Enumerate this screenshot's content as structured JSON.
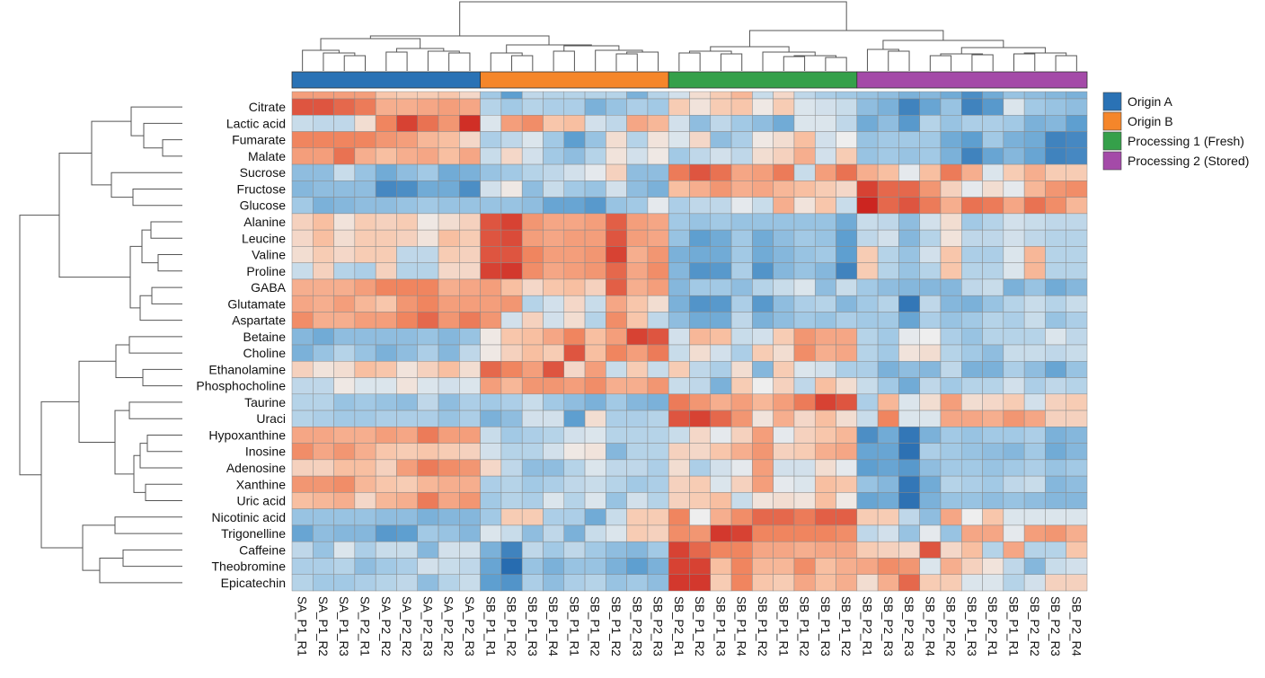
{
  "chart_data": {
    "type": "heatmap",
    "title": "",
    "color_scale": {
      "low": "#2166ac",
      "mid": "#eeeeee",
      "high": "#cc2520",
      "range": [
        -2.5,
        2.5
      ]
    },
    "row_dendrogram": true,
    "column_dendrogram": true,
    "legend_position": "right",
    "legend": [
      {
        "label": "Origin A",
        "color": "#2a72b5"
      },
      {
        "label": "Origin B",
        "color": "#f5862a"
      },
      {
        "label": "Processing 1 (Fresh)",
        "color": "#35a04a"
      },
      {
        "label": "Processing 2 (Stored)",
        "color": "#a44aa8"
      }
    ],
    "column_groups": [
      0,
      0,
      0,
      0,
      0,
      0,
      0,
      0,
      0,
      1,
      1,
      1,
      1,
      1,
      1,
      1,
      1,
      1,
      2,
      2,
      2,
      2,
      2,
      2,
      2,
      2,
      2,
      3,
      3,
      3,
      3,
      3,
      3,
      3,
      3,
      3,
      3,
      3
    ],
    "columns": [
      "SA_P1_R1",
      "SA_P1_R2",
      "SA_P1_R3",
      "SA_P2_R1",
      "SA_P2_R2",
      "SA_P2_R2",
      "SA_P2_R3",
      "SA_P2_R2",
      "SA_P2_R3",
      "SB_P1_R1",
      "SB_P1_R2",
      "SB_P1_R3",
      "SB_P1_R4",
      "SB_P1_R1",
      "SB_P1_R2",
      "SB_P1_R2",
      "SB_P2_R3",
      "SB_P2_R3",
      "SB_P2_R1",
      "SB_P1_R2",
      "SB_P1_R3",
      "SB_P1_R4",
      "SB_P1_R2",
      "SB_P1_R1",
      "SB_P1_R2",
      "SB_P1_R3",
      "SB_P1_R2",
      "SB_P2_R1",
      "SB_P2_R3",
      "SB_P2_R3",
      "SB_P2_R4",
      "SB_P2_R2",
      "SB_P1_R3",
      "SB_P2_R1",
      "SB_P1_R1",
      "SB_P2_R2",
      "SB_P2_R3",
      "SB_P2_R4"
    ],
    "rows": [
      "",
      "Citrate",
      "Lactic acid",
      "Fumarate",
      "Malate",
      "Sucrose",
      "Fructose",
      "Glucose",
      "Alanine",
      "Leucine",
      "Valine",
      "Proline",
      "GABA",
      "Glutamate",
      "Aspartate",
      "Betaine",
      "Choline",
      "Ethanolamine",
      "Phosphocholine",
      "Taurine",
      "Uraci",
      "Hypoxanthine",
      "Inosine",
      "Adenosine",
      "Xanthine",
      "Uric acid",
      "Nicotinic acid",
      "Trigonelline",
      "Caffeine",
      "Theobromine",
      "Epicatechin"
    ],
    "values": [
      [
        1.2,
        1.2,
        1.2,
        1.2,
        0.7,
        0.6,
        0.6,
        0.7,
        0.4,
        -0.8,
        -1.5,
        -0.5,
        -0.6,
        -0.6,
        -0.6,
        -0.6,
        -1.2,
        -0.6,
        -0.3,
        0.3,
        0.6,
        0.9,
        -0.4,
        0.4,
        -0.5,
        -0.7,
        -0.8,
        -0.9,
        -1,
        -1.2,
        -1.1,
        -1.3,
        -1.8,
        -1.3,
        -0.9,
        -1,
        -1.1,
        -1.2
      ],
      [
        2,
        2,
        1.8,
        1.6,
        1,
        1,
        1.1,
        1.2,
        1.1,
        -0.6,
        -0.8,
        -0.6,
        -0.7,
        -0.7,
        -1.2,
        -0.9,
        -0.7,
        -0.8,
        0.6,
        0.2,
        0.6,
        0.7,
        0.1,
        0.6,
        -0.2,
        -0.3,
        -0.4,
        -1,
        -1.2,
        -2,
        -1.4,
        -0.9,
        -2,
        -1.6,
        -0.2,
        -0.8,
        -0.9,
        -1
      ],
      [
        -0.4,
        -0.5,
        -0.5,
        0.3,
        1.5,
        2.2,
        1.7,
        1.3,
        2.4,
        -0.2,
        1.2,
        1.4,
        0.7,
        0.8,
        -0.3,
        -0.5,
        1.1,
        0.9,
        -0.3,
        -1,
        -0.5,
        -0.8,
        -1,
        -1.3,
        -0.2,
        -0.2,
        -0.5,
        -1.3,
        -1,
        -1.6,
        -0.6,
        -0.9,
        -0.7,
        -0.7,
        -0.8,
        -1.2,
        -1.1,
        -1.5
      ],
      [
        1.5,
        1.5,
        1.5,
        1.5,
        1.3,
        1.2,
        0.9,
        0.8,
        0.4,
        -0.7,
        -0.5,
        -0.2,
        -0.8,
        -1.5,
        -0.9,
        0.3,
        -0.6,
        0.2,
        -0.2,
        0.4,
        -1,
        -0.7,
        0.1,
        0.3,
        0.8,
        -0.3,
        0,
        -0.9,
        -0.8,
        -0.8,
        -0.8,
        -1.3,
        -1.5,
        -0.8,
        -1.2,
        -1.3,
        -2,
        -1.9
      ],
      [
        1.2,
        1.2,
        1.7,
        1,
        0.8,
        1,
        1.1,
        0.8,
        1.1,
        -0.4,
        0.4,
        -0.3,
        -0.8,
        -1,
        -0.6,
        0.2,
        -0.3,
        0.1,
        -0.8,
        -0.5,
        -0.3,
        -0.5,
        0.3,
        0.5,
        1,
        -0.3,
        0.6,
        -0.9,
        -0.8,
        -0.9,
        -0.8,
        -1.2,
        -2,
        -1.4,
        -1.1,
        -1.4,
        -2,
        -1.9
      ],
      [
        -1,
        -1,
        -0.4,
        -0.9,
        -1.3,
        -1,
        -0.8,
        -1.3,
        -1.2,
        -0.9,
        -0.8,
        -0.6,
        -0.5,
        -0.3,
        -0.1,
        0.5,
        -1,
        -1,
        1.6,
        2,
        1.7,
        1.1,
        1.2,
        1.6,
        -0.4,
        1.2,
        1.7,
        1,
        0.8,
        -0.1,
        0.8,
        1.6,
        1,
        -0.2,
        0.6,
        1,
        0.6,
        0.6
      ],
      [
        -1.1,
        -1,
        -1,
        -1,
        -1.9,
        -1.8,
        -1.3,
        -1.3,
        -1.8,
        -0.3,
        0.1,
        -1,
        -0.4,
        -0.8,
        -0.9,
        -0.3,
        -1,
        -1.2,
        0.8,
        1,
        1.3,
        1,
        1.1,
        0.9,
        0.8,
        0.6,
        0.4,
        2.2,
        1.8,
        1.8,
        1.3,
        0.5,
        -0.1,
        0.3,
        -0.1,
        0.9,
        1.3,
        1.4
      ],
      [
        -0.8,
        -1.2,
        -1.1,
        -1,
        -1,
        -0.9,
        -0.8,
        -0.9,
        -0.9,
        -0.9,
        -0.9,
        -1,
        -1.4,
        -1.4,
        -1.6,
        -0.9,
        -0.8,
        -0.1,
        -0.7,
        -0.5,
        -0.5,
        -0.1,
        -0.4,
        1,
        0.2,
        0.7,
        -0.4,
        2.6,
        1.8,
        2,
        1.6,
        1,
        1.7,
        1.6,
        1.1,
        1.7,
        1.4,
        0.9
      ],
      [
        0.5,
        0.8,
        0.2,
        0.6,
        0.5,
        0.6,
        0.1,
        0.3,
        0.5,
        2,
        2.2,
        1.3,
        1.1,
        1.1,
        1.2,
        1.9,
        1.2,
        1.1,
        -0.8,
        -0.9,
        -0.8,
        -0.9,
        -0.9,
        -0.9,
        -0.9,
        -0.9,
        -1.3,
        -0.4,
        -0.5,
        -1,
        -0.3,
        0.3,
        -0.8,
        -0.6,
        -0.3,
        -0.4,
        -0.5,
        -0.5
      ],
      [
        0.4,
        0.8,
        0.3,
        0.6,
        0.6,
        0.5,
        0.2,
        0.8,
        0.6,
        2,
        2.1,
        1.2,
        1.1,
        1.2,
        1.2,
        2,
        1.2,
        1.1,
        -0.9,
        -1.5,
        -1.3,
        -0.8,
        -1.3,
        -1,
        -0.8,
        -0.9,
        -1.5,
        -0.5,
        -0.3,
        -1.1,
        -0.6,
        0.2,
        -0.5,
        -0.5,
        -0.3,
        -0.5,
        -0.6,
        -0.6
      ],
      [
        0.3,
        0.6,
        0.4,
        0.6,
        0.6,
        -0.5,
        -0.5,
        0.6,
        0.5,
        2,
        2,
        1.5,
        1.2,
        1.2,
        1.3,
        2.2,
        1,
        1.3,
        -1.2,
        -1.3,
        -1.3,
        -0.8,
        -1.3,
        -1.1,
        -0.9,
        -0.8,
        -1.5,
        0.6,
        -0.6,
        -0.9,
        -0.3,
        0.7,
        -0.7,
        -0.7,
        -0.2,
        0.9,
        -0.6,
        -0.6
      ],
      [
        -0.4,
        0.5,
        -0.6,
        -0.7,
        0.5,
        -0.6,
        -0.6,
        0.4,
        0.4,
        2.2,
        2.3,
        1.4,
        1.1,
        1.2,
        1.3,
        1.8,
        1.1,
        1.4,
        -1.1,
        -1.7,
        -1.6,
        -0.7,
        -1.7,
        -1.1,
        -0.9,
        -1.1,
        -2,
        0.6,
        -0.6,
        -0.9,
        -0.6,
        0.7,
        -0.6,
        -0.6,
        -0.2,
        0.9,
        -0.6,
        -0.6
      ],
      [
        1,
        1,
        1,
        1.2,
        1.5,
        1.5,
        1.5,
        1,
        1.1,
        1.2,
        0.8,
        0.4,
        0.7,
        0.8,
        0.5,
        1.9,
        1,
        1.2,
        -1.1,
        -0.8,
        -0.8,
        -1,
        -0.6,
        -0.4,
        -0.2,
        -1,
        -0.4,
        -0.8,
        -1,
        -1.1,
        -1.1,
        -1.1,
        -0.5,
        -0.4,
        -1.2,
        -0.9,
        -1.3,
        -1.1
      ],
      [
        1.1,
        1,
        1.2,
        0.9,
        0.7,
        1.3,
        1.5,
        1.2,
        1.2,
        1.2,
        1.3,
        -0.6,
        -0.3,
        0.4,
        -0.4,
        1.1,
        0.7,
        0.3,
        -1.2,
        -1.7,
        -1.6,
        -0.7,
        -1.6,
        -1,
        -0.7,
        -0.6,
        -1.1,
        -0.8,
        -0.6,
        -2.2,
        -0.5,
        -1.1,
        -1.2,
        -0.9,
        -0.6,
        -0.4,
        -0.6,
        -0.4
      ],
      [
        1.4,
        1,
        1,
        1.2,
        1.2,
        1.5,
        1.8,
        1.3,
        1.6,
        1.3,
        -0.3,
        0.5,
        -0.3,
        0.3,
        -0.6,
        1.4,
        0.7,
        -0.5,
        -1,
        -1.3,
        -1.3,
        -0.5,
        -1.2,
        -1,
        -0.8,
        -0.9,
        -0.7,
        -0.8,
        -0.8,
        -1.4,
        -0.7,
        -0.9,
        -0.8,
        -0.6,
        -0.7,
        -0.4,
        -0.9,
        -0.7
      ],
      [
        -1.1,
        -1.3,
        -1,
        -1,
        -1,
        -1,
        -0.9,
        -1.1,
        -0.9,
        0.1,
        0.7,
        0.8,
        1.1,
        1.5,
        0.8,
        1.2,
        2.2,
        2,
        -0.3,
        0.9,
        0.8,
        -0.4,
        -0.3,
        0.6,
        1.3,
        1.1,
        1.1,
        -0.6,
        -0.8,
        -0.1,
        0,
        -0.7,
        -0.9,
        -0.6,
        -0.6,
        -0.6,
        -0.2,
        -0.5
      ],
      [
        -1.2,
        -0.9,
        -0.6,
        -0.9,
        -1.2,
        -1,
        -0.7,
        -1.1,
        -0.5,
        0.1,
        0.5,
        0.8,
        0.6,
        2,
        0.8,
        1.5,
        1.2,
        1.6,
        -0.4,
        0.3,
        -0.3,
        -0.7,
        0.6,
        0.3,
        1.4,
        1,
        1.1,
        -0.6,
        -0.8,
        0.2,
        0.3,
        -0.6,
        -0.8,
        -1,
        -0.4,
        -0.4,
        -0.5,
        -0.4
      ],
      [
        0.5,
        0.2,
        0.3,
        0.8,
        0.7,
        0.2,
        0.5,
        0.8,
        0.3,
        1.8,
        1.5,
        1.2,
        2,
        0.4,
        1.2,
        -0.4,
        0.6,
        -0.4,
        0.6,
        -0.5,
        -0.7,
        0.3,
        -1.1,
        0.6,
        -0.2,
        -0.3,
        -0.7,
        -0.7,
        -1.2,
        -1,
        -1.1,
        -0.5,
        -1.2,
        -1.2,
        -0.7,
        -1,
        -1.4,
        -0.9
      ],
      [
        -0.5,
        -0.5,
        0.1,
        -0.2,
        -0.2,
        0.2,
        -0.2,
        -0.3,
        -0.2,
        1.2,
        0.9,
        1.3,
        1.3,
        1.2,
        1.4,
        1,
        1,
        1.3,
        -0.4,
        -0.5,
        -1.2,
        0.6,
        0,
        0.5,
        -0.5,
        0.8,
        0.3,
        -0.4,
        -0.8,
        -1.3,
        -0.5,
        -0.8,
        -0.6,
        -0.6,
        -0.3,
        -0.7,
        -0.5,
        -0.6
      ],
      [
        -0.6,
        -0.6,
        -0.9,
        -0.8,
        -0.9,
        -1,
        -0.5,
        -1,
        -0.7,
        -0.8,
        -0.7,
        -0.4,
        -0.8,
        -1,
        -1.2,
        -0.8,
        -1.1,
        -1.2,
        1.6,
        1.3,
        1,
        1.2,
        0.9,
        1.2,
        1.6,
        2.2,
        2,
        -0.7,
        0.9,
        -0.2,
        0.3,
        1.2,
        0.3,
        0.4,
        0.6,
        -0.3,
        0.5,
        0.6
      ],
      [
        -0.6,
        -0.7,
        -0.8,
        -0.8,
        -0.7,
        -0.7,
        -0.7,
        -0.9,
        -0.7,
        -1.2,
        -1,
        -0.3,
        -0.3,
        -1.5,
        0.3,
        -0.7,
        -0.7,
        -0.6,
        2,
        2.2,
        1.8,
        1.3,
        0.2,
        1,
        0.4,
        0.8,
        0.3,
        -0.4,
        1.5,
        -0.2,
        -0.2,
        1.1,
        1.1,
        1,
        1.3,
        1.1,
        0.5,
        0.5
      ],
      [
        1.1,
        1.1,
        1,
        1,
        1.2,
        1.1,
        1.6,
        1.2,
        1.2,
        -0.4,
        -0.8,
        -0.7,
        -0.6,
        -0.3,
        -0.2,
        -0.6,
        -0.6,
        -0.6,
        -0.4,
        0.4,
        -0.1,
        0.5,
        1.2,
        -0.1,
        0.5,
        0.7,
        0.9,
        -1.8,
        -1.3,
        -2.2,
        -1.2,
        -0.8,
        -0.9,
        -0.8,
        -0.8,
        -0.7,
        -1.2,
        -1.1
      ],
      [
        1.4,
        1.1,
        1.3,
        1,
        0.7,
        0.6,
        0.7,
        0.6,
        0.5,
        -0.3,
        -0.6,
        -0.6,
        -0.3,
        0.1,
        0.2,
        -1.1,
        -0.6,
        -0.6,
        0.5,
        0.4,
        0.7,
        1,
        1.3,
        0.5,
        0.6,
        1,
        1.1,
        -1.4,
        -1.4,
        -2.3,
        -0.7,
        -0.8,
        -0.9,
        -1,
        -1.1,
        -0.8,
        -1.3,
        -1.1
      ],
      [
        0.5,
        0.5,
        0.8,
        0.8,
        0.5,
        1.2,
        1.6,
        1.4,
        1.3,
        0.4,
        -0.5,
        -1,
        -1,
        -0.6,
        -0.2,
        -0.5,
        -0.5,
        -0.7,
        0.3,
        -0.7,
        -0.3,
        -0.1,
        1.2,
        -0.3,
        -0.3,
        0.3,
        -0.1,
        -1.5,
        -1.4,
        -1.6,
        -1,
        -0.8,
        -0.8,
        -0.9,
        -0.8,
        -0.7,
        -0.9,
        -0.8
      ],
      [
        1.3,
        1.3,
        1.4,
        0.9,
        0.7,
        0.6,
        0.9,
        1,
        1,
        -0.7,
        -0.6,
        -0.8,
        -0.7,
        -0.5,
        -0.4,
        -0.6,
        -0.8,
        -0.7,
        0.5,
        0.6,
        -0.2,
        0.5,
        1.2,
        -0.1,
        -0.2,
        0.8,
        0.7,
        -0.9,
        -1.1,
        -2.2,
        -1.3,
        -0.6,
        -0.7,
        -0.8,
        -0.5,
        -0.4,
        -1.1,
        -1
      ],
      [
        0.8,
        0.9,
        1,
        0.4,
        0.9,
        1,
        1.6,
        1.1,
        1.3,
        -0.8,
        -0.6,
        -0.7,
        -0.2,
        -0.6,
        -0.2,
        -0.9,
        -0.3,
        -0.6,
        0.5,
        0.6,
        0.8,
        -0.4,
        0.2,
        0.3,
        0.2,
        0.8,
        0.1,
        -1.4,
        -1.3,
        -2.3,
        -1.2,
        -0.9,
        -0.9,
        -1,
        -0.9,
        -1,
        -1.1,
        -1.1
      ],
      [
        -0.9,
        -0.9,
        -0.9,
        -0.9,
        -1,
        -1,
        -1.2,
        -1.1,
        -1.1,
        -0.8,
        0.6,
        0.6,
        -0.7,
        -0.7,
        -1.3,
        -0.4,
        0.6,
        0.6,
        1.5,
        0,
        1,
        1.4,
        1.8,
        1.8,
        1.6,
        1.9,
        1.9,
        0.6,
        0.6,
        -0.5,
        -1,
        1.1,
        0,
        0.7,
        -0.2,
        -0.2,
        -0.2,
        -0.2
      ],
      [
        -1.4,
        -1,
        -1.1,
        -1.1,
        -1.6,
        -1.5,
        -0.8,
        -0.9,
        -1.1,
        -0.2,
        -0.4,
        -1,
        -0.5,
        -1.2,
        -0.4,
        -0.2,
        0.6,
        0.5,
        1.4,
        1.3,
        2.3,
        2.2,
        1.5,
        1.5,
        1.5,
        1.5,
        1.4,
        -0.5,
        -0.3,
        -0.9,
        -0.1,
        -0.9,
        1.1,
        1.1,
        -0.1,
        1.2,
        1.3,
        1
      ],
      [
        -0.5,
        -0.9,
        -0.2,
        -0.7,
        -0.4,
        -0.4,
        -1.1,
        -0.3,
        -0.3,
        -1.2,
        -2,
        -0.5,
        -0.8,
        -0.5,
        -0.8,
        -1,
        -1.1,
        -0.8,
        2.2,
        1.8,
        1.5,
        1.5,
        1.1,
        1.1,
        1,
        1.1,
        1.1,
        0.6,
        0.5,
        0.4,
        2,
        0.4,
        0.8,
        -0.6,
        1.1,
        -0.6,
        -0.6,
        0.7
      ],
      [
        -0.7,
        -0.7,
        -0.6,
        -1,
        -0.8,
        -0.7,
        -0.3,
        -0.4,
        -0.5,
        -1.4,
        -2.4,
        -0.9,
        -1.2,
        -0.9,
        -0.9,
        -1.2,
        -1.5,
        -1.2,
        2.2,
        2.2,
        0.8,
        1.5,
        0.9,
        0.9,
        1.4,
        0.8,
        1,
        1.1,
        1.4,
        1.3,
        -0.2,
        1,
        0.5,
        0.2,
        -0.5,
        -1.1,
        -0.4,
        -0.3
      ],
      [
        -0.6,
        -0.8,
        -0.8,
        -0.7,
        -0.6,
        -0.5,
        -1,
        -0.6,
        -0.4,
        -1.5,
        -1.7,
        -0.7,
        -1,
        -0.7,
        -0.6,
        -0.9,
        -0.8,
        -1,
        2.3,
        2.3,
        0.6,
        1.5,
        0.7,
        0.6,
        1.1,
        0.8,
        1,
        0.3,
        1,
        1.8,
        0.6,
        0.6,
        -0.2,
        -0.2,
        -0.6,
        -0.3,
        0.5,
        0.5
      ]
    ]
  }
}
